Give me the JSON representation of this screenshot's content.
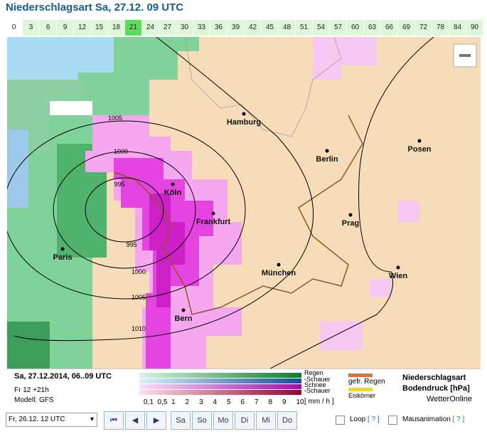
{
  "header": {
    "title": "Niederschlagsart Sa, 27.12. 09 UTC"
  },
  "hours": [
    "0",
    "3",
    "6",
    "9",
    "12",
    "15",
    "18",
    "21",
    "24",
    "27",
    "30",
    "33",
    "36",
    "39",
    "42",
    "45",
    "48",
    "51",
    "54",
    "57",
    "60",
    "63",
    "66",
    "69",
    "72",
    "78",
    "84",
    "90"
  ],
  "map": {
    "cities": [
      "Hamburg",
      "Berlin",
      "Posen",
      "Köln",
      "Frankfurt",
      "Prag",
      "Paris",
      "München",
      "Wien",
      "Bern"
    ],
    "isobars": [
      "1005",
      "1000",
      "995",
      "995",
      "1000",
      "1005",
      "1010"
    ]
  },
  "legend": {
    "date": "Sa, 27.12.2014, 06..09 UTC",
    "run": "Fr 12 +21h",
    "model": "Modell: GFS",
    "types": [
      "Regen",
      "-Schauer",
      "Schnee",
      "-Schauer"
    ],
    "scale": [
      "0,1",
      "0,5",
      "1",
      "2",
      "3",
      "4",
      "5",
      "6",
      "7",
      "8",
      "9",
      "10"
    ],
    "unit": "[ mm / h ]",
    "extra": [
      "gefr. Regen",
      "Eiskörner"
    ],
    "product": "Niederschlagsart",
    "pressure": "Bodendruck [hPa]",
    "brand": "WetterOnline"
  },
  "controls": {
    "select": "Fr, 26.12. 12 UTC",
    "days": [
      "Sa",
      "So",
      "Mo",
      "Di",
      "Mi",
      "Do"
    ],
    "loop": "Loop",
    "loop_help": "[ ? ]",
    "mouse": "Mausanimation",
    "mouse_help": "[ ? ]"
  }
}
